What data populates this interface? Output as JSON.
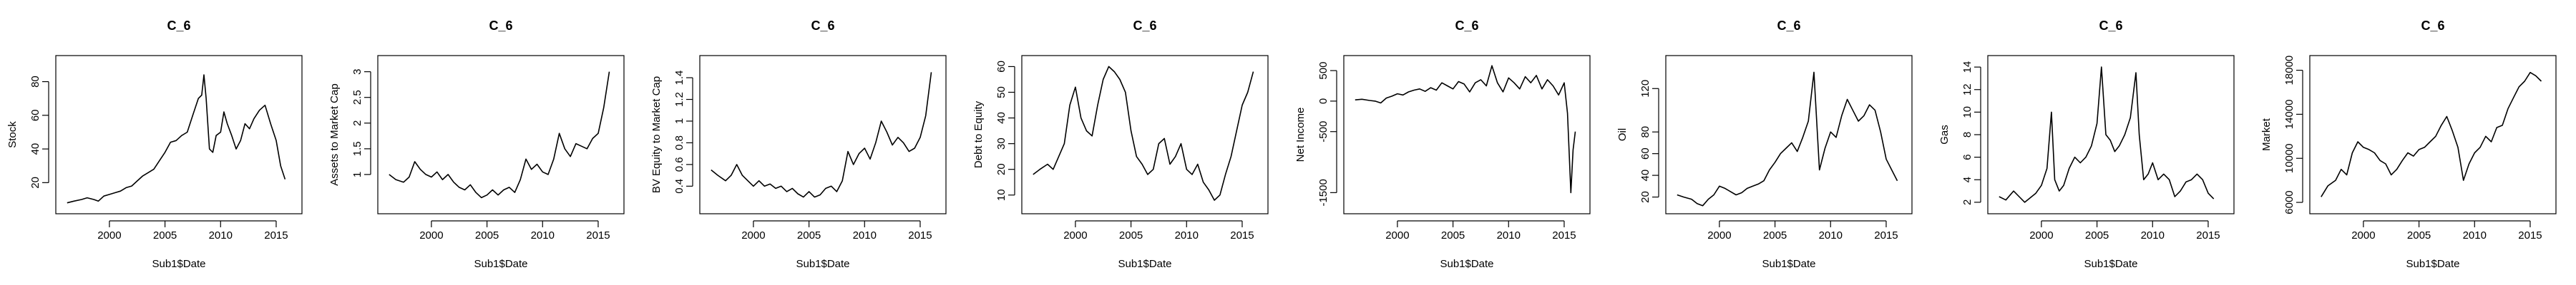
{
  "chart_data": [
    {
      "type": "line",
      "title": "C_6",
      "xlabel": "Sub1$Date",
      "ylabel": "Stock",
      "xlim": [
        1996,
        2016.5
      ],
      "ylim": [
        5,
        92
      ],
      "xticks": [
        2000,
        2005,
        2010,
        2015
      ],
      "yticks": [
        20,
        40,
        60,
        80
      ],
      "series": [
        {
          "x": [
            1996.2,
            1996.8,
            1997.5,
            1998.0,
            1998.6,
            1999.0,
            1999.5,
            2000.0,
            2000.5,
            2001.0,
            2001.5,
            2002.0,
            2002.5,
            2003.0,
            2003.5,
            2004.0,
            2004.5,
            2005.0,
            2005.5,
            2006.0,
            2006.5,
            2007.0,
            2007.5,
            2008.0,
            2008.3,
            2008.5,
            2008.7,
            2009.0,
            2009.3,
            2009.6,
            2010.0,
            2010.3,
            2010.6,
            2011.0,
            2011.4,
            2011.8,
            2012.2,
            2012.6,
            2013.0,
            2013.5,
            2014.0,
            2014.5,
            2015.0,
            2015.4,
            2015.8
          ],
          "y": [
            8,
            9,
            10,
            11,
            10,
            9,
            12,
            13,
            14,
            15,
            17,
            18,
            21,
            24,
            26,
            28,
            33,
            38,
            44,
            45,
            48,
            50,
            60,
            70,
            72,
            84,
            70,
            40,
            38,
            48,
            50,
            62,
            55,
            48,
            40,
            45,
            55,
            52,
            58,
            63,
            66,
            55,
            45,
            30,
            22
          ]
        }
      ]
    },
    {
      "type": "line",
      "title": "C_6",
      "xlabel": "Sub1$Date",
      "ylabel": "Assets to Market Cap",
      "xlim": [
        1996,
        2016.5
      ],
      "ylim": [
        0.35,
        3.2
      ],
      "xticks": [
        2000,
        2005,
        2010,
        2015
      ],
      "yticks": [
        1.0,
        1.5,
        2.0,
        2.5,
        3.0
      ],
      "series": [
        {
          "x": [
            1996.2,
            1996.8,
            1997.5,
            1998.0,
            1998.5,
            1999.0,
            1999.5,
            2000.0,
            2000.5,
            2001.0,
            2001.5,
            2002.0,
            2002.5,
            2003.0,
            2003.5,
            2004.0,
            2004.5,
            2005.0,
            2005.5,
            2006.0,
            2006.5,
            2007.0,
            2007.5,
            2008.0,
            2008.5,
            2009.0,
            2009.5,
            2010.0,
            2010.5,
            2011.0,
            2011.5,
            2012.0,
            2012.5,
            2013.0,
            2013.5,
            2014.0,
            2014.5,
            2015.0,
            2015.5,
            2016.0
          ],
          "y": [
            1.0,
            0.9,
            0.85,
            0.95,
            1.25,
            1.1,
            1.0,
            0.95,
            1.05,
            0.9,
            1.0,
            0.85,
            0.75,
            0.7,
            0.8,
            0.65,
            0.55,
            0.6,
            0.7,
            0.6,
            0.7,
            0.75,
            0.65,
            0.9,
            1.3,
            1.1,
            1.2,
            1.05,
            1.0,
            1.3,
            1.8,
            1.5,
            1.35,
            1.6,
            1.55,
            1.5,
            1.7,
            1.8,
            2.3,
            3.0
          ]
        }
      ]
    },
    {
      "type": "line",
      "title": "C_6",
      "xlabel": "Sub1$Date",
      "ylabel": "BV Equity to Market Cap",
      "xlim": [
        1996,
        2016.5
      ],
      "ylim": [
        0.2,
        1.55
      ],
      "xticks": [
        2000,
        2005,
        2010,
        2015
      ],
      "yticks": [
        0.4,
        0.6,
        0.8,
        1.0,
        1.2,
        1.4
      ],
      "series": [
        {
          "x": [
            1996.2,
            1996.8,
            1997.5,
            1998.0,
            1998.5,
            1999.0,
            1999.5,
            2000.0,
            2000.5,
            2001.0,
            2001.5,
            2002.0,
            2002.5,
            2003.0,
            2003.5,
            2004.0,
            2004.5,
            2005.0,
            2005.5,
            2006.0,
            2006.5,
            2007.0,
            2007.5,
            2008.0,
            2008.5,
            2009.0,
            2009.5,
            2010.0,
            2010.5,
            2011.0,
            2011.5,
            2012.0,
            2012.5,
            2013.0,
            2013.5,
            2014.0,
            2014.5,
            2015.0,
            2015.5,
            2016.0
          ],
          "y": [
            0.55,
            0.5,
            0.45,
            0.5,
            0.6,
            0.5,
            0.45,
            0.4,
            0.45,
            0.4,
            0.42,
            0.38,
            0.4,
            0.35,
            0.38,
            0.33,
            0.3,
            0.35,
            0.3,
            0.32,
            0.38,
            0.4,
            0.35,
            0.45,
            0.72,
            0.6,
            0.7,
            0.75,
            0.65,
            0.8,
            1.0,
            0.9,
            0.78,
            0.85,
            0.8,
            0.72,
            0.75,
            0.85,
            1.05,
            1.45
          ]
        }
      ]
    },
    {
      "type": "line",
      "title": "C_6",
      "xlabel": "Sub1$Date",
      "ylabel": "Debt to Equity",
      "xlim": [
        1996,
        2016.5
      ],
      "ylim": [
        5,
        62
      ],
      "xticks": [
        2000,
        2005,
        2010,
        2015
      ],
      "yticks": [
        10,
        20,
        30,
        40,
        50,
        60
      ],
      "series": [
        {
          "x": [
            1996.2,
            1996.8,
            1997.5,
            1998.0,
            1998.5,
            1999.0,
            1999.5,
            2000.0,
            2000.5,
            2001.0,
            2001.5,
            2002.0,
            2002.5,
            2003.0,
            2003.5,
            2004.0,
            2004.5,
            2005.0,
            2005.5,
            2006.0,
            2006.5,
            2007.0,
            2007.5,
            2008.0,
            2008.5,
            2009.0,
            2009.5,
            2010.0,
            2010.5,
            2011.0,
            2011.5,
            2012.0,
            2012.5,
            2013.0,
            2013.5,
            2014.0,
            2014.5,
            2015.0,
            2015.5,
            2016.0
          ],
          "y": [
            18,
            20,
            22,
            20,
            25,
            30,
            45,
            52,
            40,
            35,
            33,
            45,
            55,
            60,
            58,
            55,
            50,
            35,
            25,
            22,
            18,
            20,
            30,
            32,
            22,
            25,
            30,
            20,
            18,
            22,
            15,
            12,
            8,
            10,
            18,
            25,
            35,
            45,
            50,
            58
          ]
        }
      ]
    },
    {
      "type": "line",
      "title": "C_6",
      "xlabel": "Sub1$Date",
      "ylabel": "Net Income",
      "xlim": [
        1996,
        2016.5
      ],
      "ylim": [
        -1750,
        650
      ],
      "xticks": [
        2000,
        2005,
        2010,
        2015
      ],
      "yticks": [
        -1500,
        -500,
        0,
        500
      ],
      "series": [
        {
          "x": [
            1996.2,
            1996.8,
            1997.5,
            1998.0,
            1998.5,
            1999.0,
            1999.5,
            2000.0,
            2000.5,
            2001.0,
            2001.5,
            2002.0,
            2002.5,
            2003.0,
            2003.5,
            2004.0,
            2004.5,
            2005.0,
            2005.5,
            2006.0,
            2006.5,
            2007.0,
            2007.5,
            2008.0,
            2008.5,
            2009.0,
            2009.5,
            2010.0,
            2010.5,
            2011.0,
            2011.5,
            2012.0,
            2012.5,
            2013.0,
            2013.5,
            2014.0,
            2014.5,
            2015.0,
            2015.3,
            2015.6,
            2015.8,
            2016.0
          ],
          "y": [
            20,
            30,
            10,
            0,
            -30,
            50,
            80,
            120,
            100,
            150,
            180,
            200,
            160,
            220,
            180,
            300,
            250,
            200,
            320,
            280,
            150,
            300,
            350,
            250,
            580,
            300,
            150,
            380,
            300,
            200,
            400,
            300,
            420,
            200,
            350,
            250,
            100,
            300,
            -200,
            -1500,
            -800,
            -500
          ]
        }
      ]
    },
    {
      "type": "line",
      "title": "C_6",
      "xlabel": "Sub1$Date",
      "ylabel": "Oil",
      "xlim": [
        1996,
        2016.5
      ],
      "ylim": [
        10,
        145
      ],
      "xticks": [
        2000,
        2005,
        2010,
        2015
      ],
      "yticks": [
        20,
        40,
        60,
        80,
        120
      ],
      "series": [
        {
          "x": [
            1996.2,
            1996.8,
            1997.5,
            1998.0,
            1998.5,
            1999.0,
            1999.5,
            2000.0,
            2000.5,
            2001.0,
            2001.5,
            2002.0,
            2002.5,
            2003.0,
            2003.5,
            2004.0,
            2004.5,
            2005.0,
            2005.5,
            2006.0,
            2006.5,
            2007.0,
            2007.5,
            2008.0,
            2008.5,
            2009.0,
            2009.5,
            2010.0,
            2010.5,
            2011.0,
            2011.5,
            2012.0,
            2012.5,
            2013.0,
            2013.5,
            2014.0,
            2014.5,
            2015.0,
            2015.5,
            2016.0
          ],
          "y": [
            22,
            20,
            18,
            14,
            12,
            18,
            22,
            30,
            28,
            25,
            22,
            24,
            28,
            30,
            32,
            35,
            45,
            52,
            60,
            65,
            70,
            62,
            75,
            90,
            135,
            45,
            65,
            80,
            75,
            95,
            110,
            100,
            90,
            95,
            105,
            100,
            80,
            55,
            45,
            35
          ]
        }
      ]
    },
    {
      "type": "line",
      "title": "C_6",
      "xlabel": "Sub1$Date",
      "ylabel": "Gas",
      "xlim": [
        1996,
        2016.5
      ],
      "ylim": [
        1.5,
        14.5
      ],
      "xticks": [
        2000,
        2005,
        2010,
        2015
      ],
      "yticks": [
        2,
        4,
        6,
        8,
        10,
        12,
        14
      ],
      "series": [
        {
          "x": [
            1996.2,
            1996.8,
            1997.5,
            1998.0,
            1998.5,
            1999.0,
            1999.5,
            2000.0,
            2000.5,
            2000.9,
            2001.2,
            2001.6,
            2002.0,
            2002.5,
            2003.0,
            2003.5,
            2004.0,
            2004.5,
            2005.0,
            2005.4,
            2005.8,
            2006.2,
            2006.6,
            2007.0,
            2007.5,
            2008.0,
            2008.5,
            2008.8,
            2009.2,
            2009.6,
            2010.0,
            2010.5,
            2011.0,
            2011.5,
            2012.0,
            2012.5,
            2013.0,
            2013.5,
            2014.0,
            2014.5,
            2015.0,
            2015.5
          ],
          "y": [
            2.5,
            2.2,
            3.0,
            2.5,
            2.0,
            2.4,
            2.8,
            3.5,
            5.0,
            10.0,
            4.0,
            3.0,
            3.5,
            5.0,
            6.0,
            5.5,
            6.0,
            7.0,
            9.0,
            14.0,
            8.0,
            7.5,
            6.5,
            7.0,
            8.0,
            9.5,
            13.5,
            8.0,
            4.0,
            4.5,
            5.5,
            4.0,
            4.5,
            4.0,
            2.5,
            3.0,
            3.8,
            4.0,
            4.5,
            4.0,
            2.8,
            2.3
          ]
        }
      ]
    },
    {
      "type": "line",
      "title": "C_6",
      "xlabel": "Sub1$Date",
      "ylabel": "Market",
      "xlim": [
        1996,
        2016.5
      ],
      "ylim": [
        5500,
        18800
      ],
      "xticks": [
        2000,
        2005,
        2010,
        2015
      ],
      "yticks": [
        6000,
        10000,
        14000,
        18000
      ],
      "series": [
        {
          "x": [
            1996.2,
            1996.8,
            1997.5,
            1998.0,
            1998.5,
            1999.0,
            1999.5,
            2000.0,
            2000.5,
            2001.0,
            2001.5,
            2002.0,
            2002.5,
            2003.0,
            2003.5,
            2004.0,
            2004.5,
            2005.0,
            2005.5,
            2006.0,
            2006.5,
            2007.0,
            2007.5,
            2008.0,
            2008.5,
            2009.0,
            2009.5,
            2010.0,
            2010.5,
            2011.0,
            2011.5,
            2012.0,
            2012.5,
            2013.0,
            2013.5,
            2014.0,
            2014.5,
            2015.0,
            2015.5,
            2016.0
          ],
          "y": [
            6500,
            7500,
            8000,
            9000,
            8500,
            10500,
            11500,
            11000,
            10800,
            10500,
            9800,
            9500,
            8500,
            9000,
            9800,
            10500,
            10200,
            10800,
            11000,
            11500,
            12000,
            13000,
            13800,
            12500,
            11000,
            8000,
            9500,
            10500,
            11000,
            12000,
            11500,
            12800,
            13000,
            14500,
            15500,
            16500,
            17000,
            17800,
            17500,
            17000
          ]
        }
      ]
    }
  ]
}
